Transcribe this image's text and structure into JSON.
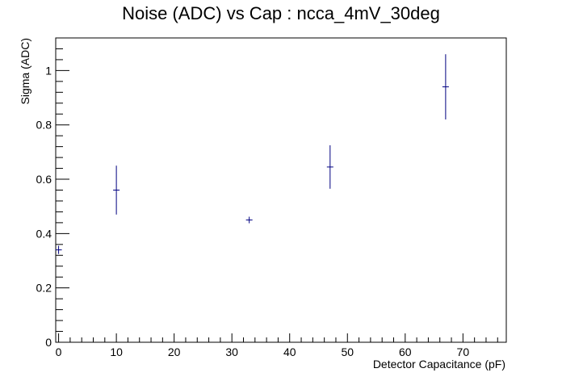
{
  "chart_data": {
    "type": "scatter",
    "title": "Noise (ADC) vs Cap : ncca_4mV_30deg",
    "xlabel": "Detector Capacitance (pF)",
    "ylabel": "Sigma (ADC)",
    "xlim": [
      -0.5,
      77.5
    ],
    "ylim": [
      0,
      1.12
    ],
    "x_ticks": [
      "0",
      "10",
      "20",
      "30",
      "40",
      "50",
      "60",
      "70"
    ],
    "y_ticks": [
      "0",
      "0.2",
      "0.4",
      "0.6",
      "0.8",
      "1"
    ],
    "grid": false,
    "points_color": "#000080",
    "series": [
      {
        "x": [
          0,
          10,
          33,
          47,
          67
        ],
        "y": [
          0.34,
          0.56,
          0.45,
          0.645,
          0.94
        ],
        "yerr": [
          0.015,
          0.09,
          0.012,
          0.08,
          0.12
        ]
      }
    ]
  }
}
